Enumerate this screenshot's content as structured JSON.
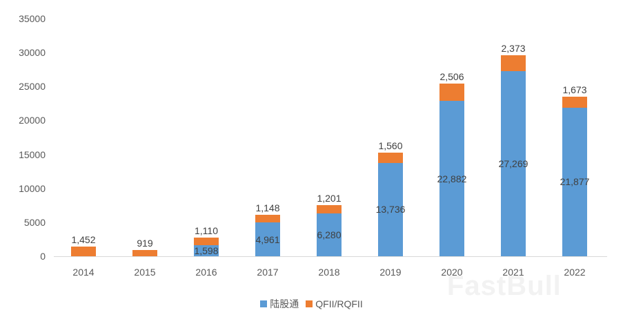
{
  "chart_data": {
    "type": "bar",
    "stacked": true,
    "title": "",
    "xlabel": "",
    "ylabel": "",
    "categories": [
      "2014",
      "2015",
      "2016",
      "2017",
      "2018",
      "2019",
      "2020",
      "2021",
      "2022"
    ],
    "series": [
      {
        "name": "陆股通",
        "color": "#5b9bd5",
        "values": [
          0,
          0,
          1598,
          4961,
          6280,
          13736,
          22882,
          27269,
          21877
        ],
        "labels": [
          "",
          "",
          "1,598",
          "4,961",
          "6,280",
          "13,736",
          "22,882",
          "27,269",
          "21,877"
        ]
      },
      {
        "name": "QFII/RQFII",
        "color": "#ed7d31",
        "values": [
          1452,
          919,
          1110,
          1148,
          1201,
          1560,
          2506,
          2373,
          1673
        ],
        "labels": [
          "1,452",
          "919",
          "1,110",
          "1,148",
          "1,201",
          "1,560",
          "2,506",
          "2,373",
          "1,673"
        ]
      }
    ],
    "ylim": [
      0,
      35000
    ],
    "yticks": [
      "0",
      "5000",
      "10000",
      "15000",
      "20000",
      "25000",
      "30000",
      "35000"
    ],
    "grid": false,
    "legend_position": "bottom"
  },
  "watermark": "FastBull"
}
